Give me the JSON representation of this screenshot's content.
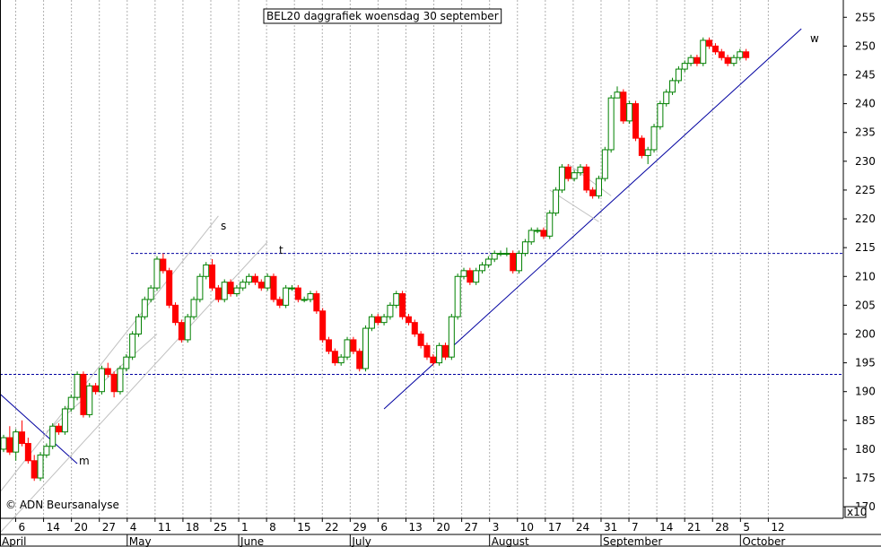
{
  "chart_data": {
    "type": "candlestick",
    "title": "BEL20 daggrafiek woensdag 30 september",
    "copyright": "© ADN Beursanalyse",
    "y_axis_position": "right",
    "ylim": [
      168,
      258
    ],
    "y_ticks": [
      170,
      175,
      180,
      185,
      190,
      195,
      200,
      205,
      210,
      215,
      220,
      225,
      230,
      235,
      240,
      245,
      250,
      255
    ],
    "y_multiplier_label": "x10",
    "grid": "vertical dotted",
    "colors": {
      "up": "#008000",
      "down": "#ff0000",
      "line": "#0000a0",
      "channel": "#c0c0c0",
      "grid": "#b0b0b0"
    },
    "day_ticks": [
      "6",
      "14",
      "20",
      "27",
      "4",
      "11",
      "18",
      "25",
      "1",
      "8",
      "15",
      "22",
      "29",
      "6",
      "13",
      "20",
      "27",
      "3",
      "10",
      "17",
      "24",
      "31",
      "7",
      "14",
      "21",
      "28",
      "5",
      "12"
    ],
    "month_labels": [
      {
        "label": "April",
        "at": "6"
      },
      {
        "label": "May",
        "at": "4"
      },
      {
        "label": "June",
        "at": "1"
      },
      {
        "label": "July",
        "at": "29"
      },
      {
        "label": "August",
        "at": "3"
      },
      {
        "label": "September",
        "at": "31"
      },
      {
        "label": "October",
        "at": "5"
      }
    ],
    "horizontal_levels": [
      214,
      193
    ],
    "annotations": [
      {
        "text": "s"
      },
      {
        "text": "t"
      },
      {
        "text": "w"
      },
      {
        "text": "m"
      }
    ],
    "closes": [
      182,
      179.5,
      183,
      181,
      178,
      175,
      179,
      180.5,
      184,
      183,
      187,
      189,
      193,
      186,
      191,
      190,
      194,
      193,
      190,
      194,
      196,
      200,
      203,
      206,
      208,
      213,
      211,
      205,
      202,
      199,
      203,
      206,
      210,
      212,
      208,
      206,
      209,
      207,
      208,
      209,
      210,
      209,
      208,
      210,
      206,
      205,
      208,
      208,
      206,
      206,
      207,
      204,
      199,
      197,
      195,
      196,
      199,
      197,
      194,
      201,
      203,
      202,
      203,
      205,
      207,
      203,
      202,
      200,
      198,
      196,
      195,
      198,
      196,
      203,
      210,
      211,
      209,
      211,
      212,
      213,
      214,
      214,
      214,
      211,
      214,
      216,
      218,
      218,
      217,
      221,
      225,
      229,
      227,
      228,
      229,
      225,
      224,
      227,
      232,
      241,
      242,
      237,
      240,
      234,
      231,
      232,
      236,
      240,
      242,
      244,
      246,
      247,
      248,
      247,
      251,
      250,
      249,
      248,
      247,
      248,
      249,
      248
    ],
    "candles": [
      [
        180,
        182.5,
        179.5,
        182
      ],
      [
        182,
        184,
        179,
        179.5
      ],
      [
        179.5,
        183.5,
        178,
        183
      ],
      [
        183,
        185,
        180.5,
        181
      ],
      [
        181,
        182,
        177.5,
        178
      ],
      [
        178,
        179,
        174.5,
        175
      ],
      [
        175,
        179.5,
        174.5,
        179
      ],
      [
        179,
        181,
        178.5,
        180.5
      ],
      [
        180.5,
        184.5,
        180,
        184
      ],
      [
        184,
        184.5,
        182.5,
        183
      ],
      [
        183,
        187.5,
        182.5,
        187
      ],
      [
        187,
        189.5,
        186.5,
        189
      ],
      [
        189,
        193.5,
        188.5,
        193
      ],
      [
        193,
        193.5,
        185.5,
        186
      ],
      [
        186,
        191.5,
        185.5,
        191
      ],
      [
        191,
        191.5,
        189.5,
        190
      ],
      [
        190,
        194.5,
        189.5,
        194
      ],
      [
        194,
        195,
        192.5,
        193
      ],
      [
        193,
        193.5,
        189,
        190
      ],
      [
        190,
        194.5,
        189.5,
        194
      ],
      [
        194,
        196.5,
        193.5,
        196
      ],
      [
        196,
        200.5,
        195.5,
        200
      ],
      [
        200,
        203.5,
        199.5,
        203
      ],
      [
        203,
        206.5,
        202.5,
        206
      ],
      [
        206,
        208.5,
        205.5,
        208
      ],
      [
        208,
        213.5,
        207.5,
        213
      ],
      [
        213,
        214,
        210.5,
        211
      ],
      [
        211,
        211.5,
        204.5,
        205
      ],
      [
        205,
        205.5,
        201.5,
        202
      ],
      [
        202,
        202.5,
        198.5,
        199
      ],
      [
        199,
        203.5,
        198.5,
        203
      ],
      [
        203,
        206.5,
        202.5,
        206
      ],
      [
        206,
        210.5,
        205.5,
        210
      ],
      [
        210,
        212.5,
        209.5,
        212
      ],
      [
        212,
        213,
        207.5,
        208
      ],
      [
        208,
        208.5,
        205.5,
        206
      ],
      [
        206,
        209.5,
        205.5,
        209
      ],
      [
        209,
        209.5,
        206.5,
        207
      ],
      [
        207,
        208.5,
        206.5,
        208
      ],
      [
        208,
        209.5,
        207.5,
        209
      ],
      [
        209,
        210.5,
        208.5,
        210
      ],
      [
        210,
        210.5,
        208.5,
        209
      ],
      [
        209,
        209.5,
        207.5,
        208
      ],
      [
        208,
        210.5,
        207.5,
        210
      ],
      [
        210,
        210.5,
        205.5,
        206
      ],
      [
        206,
        206.5,
        204.5,
        205
      ],
      [
        205,
        208.5,
        204.5,
        208
      ],
      [
        208,
        208.5,
        207.5,
        208
      ],
      [
        208,
        208.5,
        205.5,
        206
      ],
      [
        206,
        206.5,
        205.5,
        206
      ],
      [
        206,
        207.5,
        205.5,
        207
      ],
      [
        207,
        207.5,
        203.5,
        204
      ],
      [
        204,
        204.5,
        198.5,
        199
      ],
      [
        199,
        199.5,
        196.5,
        197
      ],
      [
        197,
        197.5,
        194.5,
        195
      ],
      [
        195,
        196.5,
        194.5,
        196
      ],
      [
        196,
        199.5,
        195.5,
        199
      ],
      [
        199,
        199.5,
        196.5,
        197
      ],
      [
        197,
        197.5,
        193.5,
        194
      ],
      [
        194,
        201.5,
        193.5,
        201
      ],
      [
        201,
        203.5,
        200.5,
        203
      ],
      [
        203,
        203.5,
        201.5,
        202
      ],
      [
        202,
        203.5,
        201.5,
        203
      ],
      [
        203,
        205.5,
        202.5,
        205
      ],
      [
        205,
        207.5,
        204.5,
        207
      ],
      [
        207,
        207.5,
        202.5,
        203
      ],
      [
        203,
        203.5,
        201.5,
        202
      ],
      [
        202,
        202.5,
        199.5,
        200
      ],
      [
        200,
        200.5,
        197.5,
        198
      ],
      [
        198,
        198.5,
        195.5,
        196
      ],
      [
        196,
        196.5,
        194.5,
        195
      ],
      [
        195,
        198.5,
        194.5,
        198
      ],
      [
        198,
        198.5,
        195.5,
        196
      ],
      [
        196,
        203.5,
        195.5,
        203
      ],
      [
        203,
        210.5,
        202.5,
        210
      ],
      [
        210,
        211.5,
        209.5,
        211
      ],
      [
        211,
        211.5,
        208.5,
        209
      ],
      [
        209,
        211.5,
        208.5,
        211
      ],
      [
        211,
        212.5,
        210.5,
        212
      ],
      [
        212,
        213.5,
        211.5,
        213
      ],
      [
        213,
        214.5,
        212.5,
        214
      ],
      [
        214,
        214.5,
        213.5,
        214
      ],
      [
        214,
        215,
        213.5,
        214
      ],
      [
        214,
        214.5,
        210.5,
        211
      ],
      [
        211,
        214.5,
        210.5,
        214
      ],
      [
        214,
        216.5,
        213.5,
        216
      ],
      [
        216,
        218.5,
        215.5,
        218
      ],
      [
        218,
        218.5,
        217.5,
        218
      ],
      [
        218,
        218.5,
        216.5,
        217
      ],
      [
        217,
        221.5,
        216.5,
        221
      ],
      [
        221,
        225.5,
        220.5,
        225
      ],
      [
        225,
        229.5,
        224.5,
        229
      ],
      [
        229,
        229.5,
        226.5,
        227
      ],
      [
        227,
        228.5,
        226.5,
        228
      ],
      [
        228,
        229.5,
        227.5,
        229
      ],
      [
        229,
        229.5,
        224.5,
        225
      ],
      [
        225,
        225.5,
        223.5,
        224
      ],
      [
        224,
        227.5,
        223.5,
        227
      ],
      [
        227,
        232.5,
        226.5,
        232
      ],
      [
        232,
        241.5,
        231.5,
        241
      ],
      [
        241,
        243,
        241,
        242
      ],
      [
        242,
        242.5,
        236.5,
        237
      ],
      [
        237,
        240.5,
        236.5,
        240
      ],
      [
        240,
        240.5,
        233.5,
        234
      ],
      [
        234,
        234.5,
        230.5,
        231
      ],
      [
        231,
        232.5,
        229.5,
        232
      ],
      [
        232,
        236.5,
        231.5,
        236
      ],
      [
        236,
        240.5,
        235.5,
        240
      ],
      [
        240,
        242.5,
        239.5,
        242
      ],
      [
        242,
        244.5,
        241.5,
        244
      ],
      [
        244,
        246.5,
        243.5,
        246
      ],
      [
        246,
        247.5,
        245.5,
        247
      ],
      [
        247,
        248.5,
        246.5,
        248
      ],
      [
        248,
        248.5,
        246.5,
        247
      ],
      [
        247,
        251.5,
        246.5,
        251
      ],
      [
        251,
        251.5,
        249.5,
        250
      ],
      [
        250,
        250.5,
        248.5,
        249
      ],
      [
        249,
        249.5,
        247.5,
        248
      ],
      [
        248,
        248.5,
        246.5,
        247
      ],
      [
        247,
        248.5,
        246.5,
        248
      ],
      [
        248,
        249.5,
        247.5,
        249
      ],
      [
        249,
        249.5,
        247.5,
        248
      ]
    ]
  }
}
